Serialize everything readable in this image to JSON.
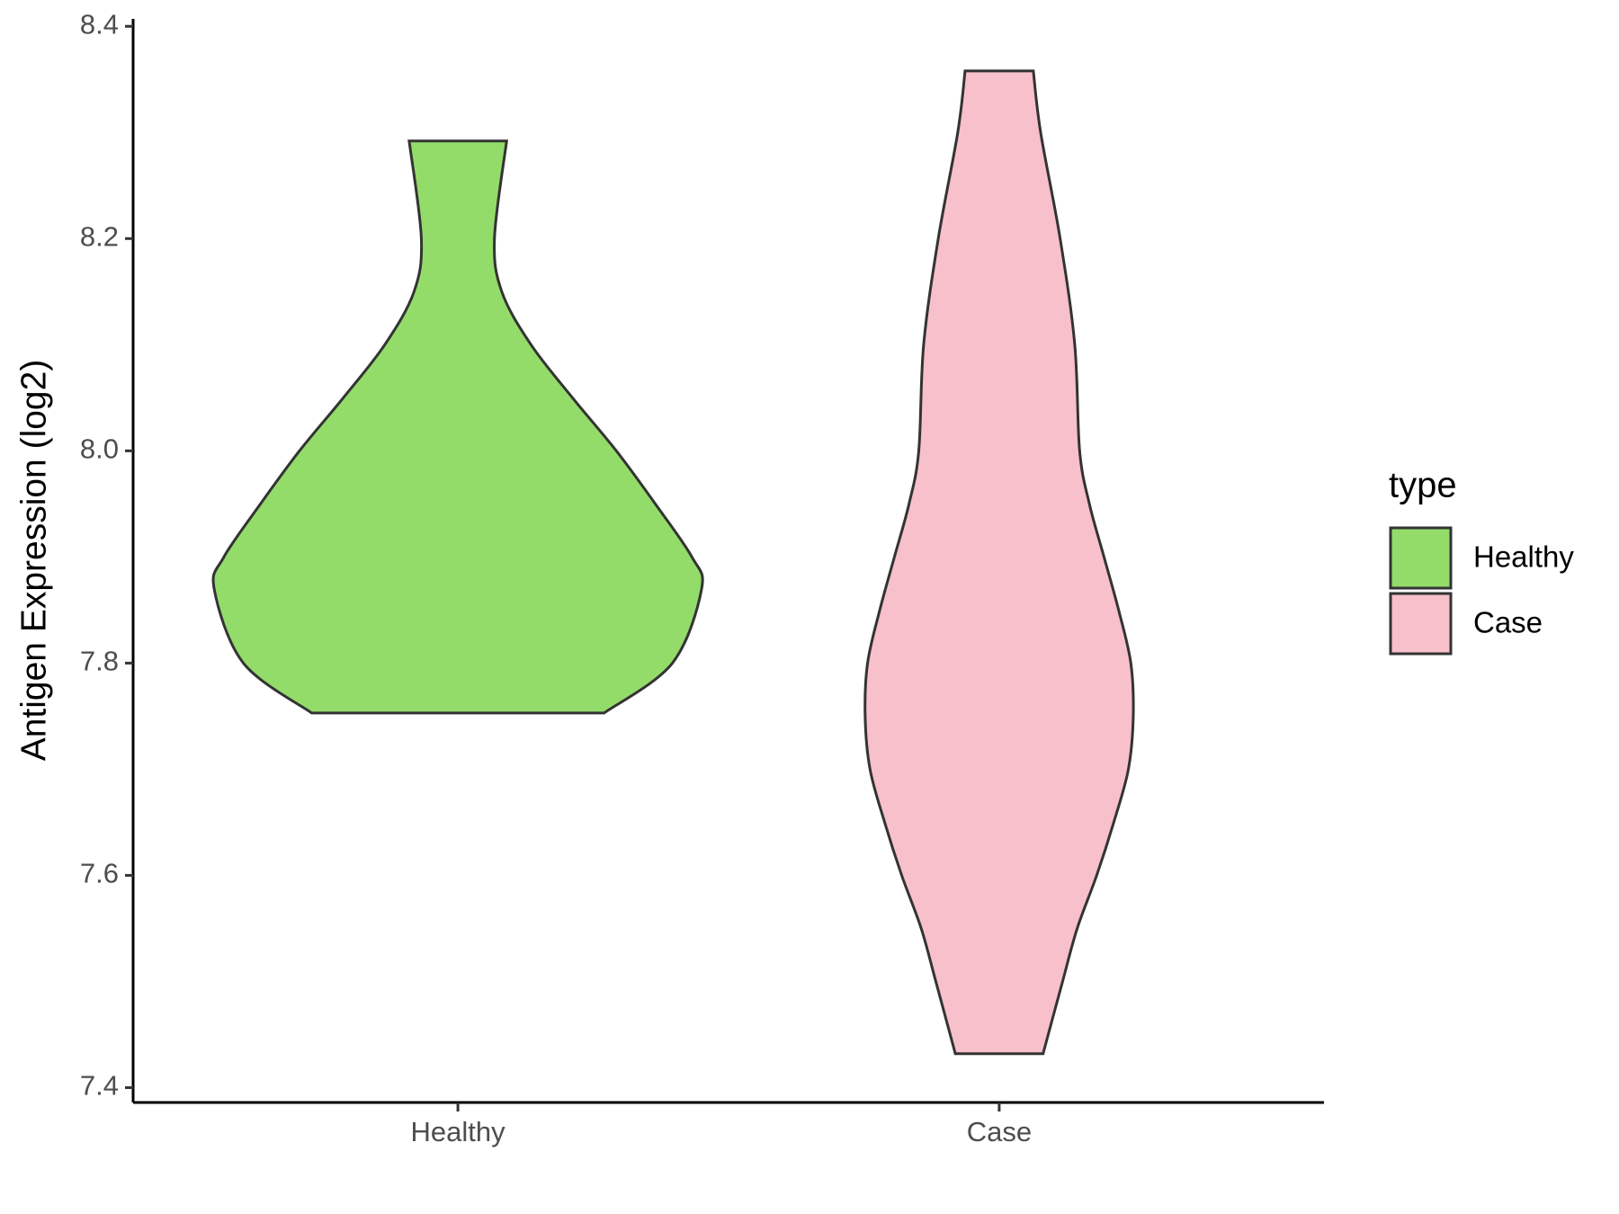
{
  "chart_data": {
    "type": "violin",
    "y_label": "Antigen Expression (log2)",
    "categories": [
      "Healthy",
      "Case"
    ],
    "legend_title": "type",
    "legend_position": "right",
    "ylim": [
      7.386,
      8.407
    ],
    "yticks": [
      {
        "value": 7.4,
        "label": "7.4"
      },
      {
        "value": 7.6,
        "label": "7.6"
      },
      {
        "value": 7.8,
        "label": "7.8"
      },
      {
        "value": 8.0,
        "label": "8.0"
      },
      {
        "value": 8.2,
        "label": "8.2"
      },
      {
        "value": 8.4,
        "label": "8.4"
      }
    ],
    "series": [
      {
        "name": "Healthy",
        "color": "#93DC6A",
        "y": [
          7.753,
          7.8,
          7.87,
          7.9,
          7.95,
          8.0,
          8.05,
          8.1,
          8.15,
          8.2,
          8.292
        ],
        "density": [
          0.6,
          0.88,
          1.0,
          0.96,
          0.81,
          0.65,
          0.47,
          0.3,
          0.18,
          0.15,
          0.2
        ]
      },
      {
        "name": "Case",
        "color": "#F7C0CB",
        "y": [
          7.432,
          7.5,
          7.55,
          7.6,
          7.65,
          7.7,
          7.75,
          7.8,
          7.85,
          7.9,
          7.95,
          8.0,
          8.1,
          8.2,
          8.3,
          8.358
        ],
        "density": [
          0.18,
          0.26,
          0.32,
          0.4,
          0.47,
          0.53,
          0.55,
          0.54,
          0.49,
          0.43,
          0.37,
          0.33,
          0.31,
          0.25,
          0.17,
          0.14
        ]
      }
    ]
  }
}
